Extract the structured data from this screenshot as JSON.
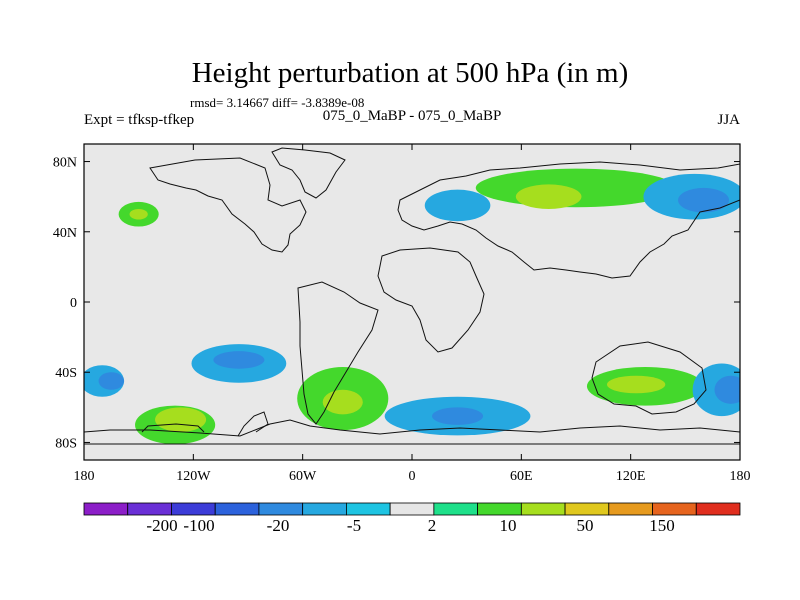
{
  "chart_data": {
    "type": "heatmap",
    "title": "Height perturbation at 500 hPa (in m)",
    "stats": "rmsd= 3.14667 diff= -3.8389e-08",
    "left_label": "Expt = tfksp-tfkep",
    "center_label": "075_0_MaBP - 075_0_MaBP",
    "right_label": "JJA",
    "x_ticks": [
      {
        "lon": -180,
        "label": "180"
      },
      {
        "lon": -120,
        "label": "120W"
      },
      {
        "lon": -60,
        "label": "60W"
      },
      {
        "lon": 0,
        "label": "0"
      },
      {
        "lon": 60,
        "label": "60E"
      },
      {
        "lon": 120,
        "label": "120E"
      },
      {
        "lon": 180,
        "label": "180"
      }
    ],
    "y_ticks": [
      {
        "lat": 80,
        "label": "80N"
      },
      {
        "lat": 40,
        "label": "40N"
      },
      {
        "lat": 0,
        "label": "0"
      },
      {
        "lat": -40,
        "label": "40S"
      },
      {
        "lat": -80,
        "label": "80S"
      }
    ],
    "xlim": [
      -180,
      180
    ],
    "ylim": [
      -90,
      90
    ],
    "background_color": "#e8e8e8",
    "colorbar": {
      "colors": [
        "#8c1ec8",
        "#6a2fd6",
        "#3c3cd8",
        "#2c62dc",
        "#2f8adf",
        "#26a8e0",
        "#1ec4e2",
        "#e6e6e6",
        "#1ee08a",
        "#44d82c",
        "#a6de1e",
        "#e0c81e",
        "#e69a1e",
        "#e6641e",
        "#e02e1e"
      ],
      "labels": [
        "-200",
        "-100",
        "-20",
        "-5",
        "2",
        "10",
        "50",
        "150"
      ]
    },
    "anomalies": [
      {
        "lon": -170,
        "lat": -45,
        "level": -2,
        "rx": 12,
        "ry": 9
      },
      {
        "lon": -165,
        "lat": -45,
        "level": -3,
        "rx": 7,
        "ry": 5
      },
      {
        "lon": -130,
        "lat": -70,
        "level": 2,
        "rx": 22,
        "ry": 11
      },
      {
        "lon": -127,
        "lat": -67,
        "level": 3,
        "rx": 14,
        "ry": 7
      },
      {
        "lon": -95,
        "lat": -35,
        "level": -2,
        "rx": 26,
        "ry": 11
      },
      {
        "lon": -95,
        "lat": -33,
        "level": -3,
        "rx": 14,
        "ry": 5
      },
      {
        "lon": -38,
        "lat": -55,
        "level": 2,
        "rx": 25,
        "ry": 18
      },
      {
        "lon": -38,
        "lat": -57,
        "level": 3,
        "rx": 11,
        "ry": 7
      },
      {
        "lon": 25,
        "lat": -65,
        "level": -2,
        "rx": 40,
        "ry": 11
      },
      {
        "lon": 25,
        "lat": -65,
        "level": -3,
        "rx": 14,
        "ry": 5
      },
      {
        "lon": 128,
        "lat": -48,
        "level": 2,
        "rx": 32,
        "ry": 11
      },
      {
        "lon": 123,
        "lat": -47,
        "level": 3,
        "rx": 16,
        "ry": 5
      },
      {
        "lon": 170,
        "lat": -50,
        "level": -2,
        "rx": 16,
        "ry": 15
      },
      {
        "lon": 175,
        "lat": -50,
        "level": -3,
        "rx": 9,
        "ry": 8
      },
      {
        "lon": 90,
        "lat": 65,
        "level": 2,
        "rx": 55,
        "ry": 11
      },
      {
        "lon": 75,
        "lat": 60,
        "level": 3,
        "rx": 18,
        "ry": 7
      },
      {
        "lon": 155,
        "lat": 60,
        "level": -2,
        "rx": 28,
        "ry": 13
      },
      {
        "lon": 160,
        "lat": 58,
        "level": -3,
        "rx": 14,
        "ry": 7
      },
      {
        "lon": 25,
        "lat": 55,
        "level": -2,
        "rx": 18,
        "ry": 9
      },
      {
        "lon": -150,
        "lat": 50,
        "level": 2,
        "rx": 11,
        "ry": 7
      },
      {
        "lon": -150,
        "lat": 50,
        "level": 3,
        "rx": 5,
        "ry": 3
      }
    ]
  }
}
